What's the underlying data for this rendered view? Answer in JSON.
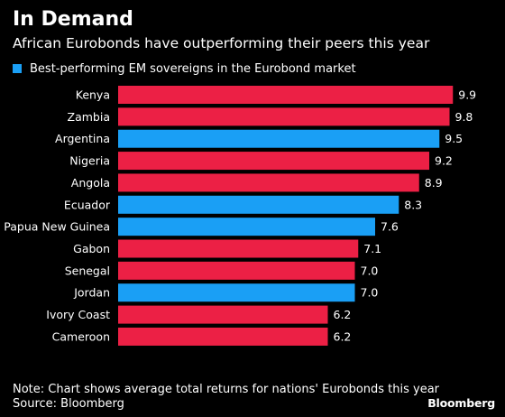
{
  "header": {
    "title": "In Demand",
    "subtitle": "African Eurobonds have outperforming their peers this year"
  },
  "legend": {
    "label": "Best-performing EM sovereigns in the Eurobond market",
    "color": "#1a9ff5"
  },
  "colors": {
    "african": "#ec2045",
    "other": "#1a9ff5",
    "background": "#000000",
    "text": "#ffffff"
  },
  "chart_data": {
    "type": "bar",
    "orientation": "horizontal",
    "categories": [
      "Kenya",
      "Zambia",
      "Argentina",
      "Nigeria",
      "Angola",
      "Ecuador",
      "Papua New Guinea",
      "Gabon",
      "Senegal",
      "Jordan",
      "Ivory Coast",
      "Cameroon"
    ],
    "values": [
      9.9,
      9.8,
      9.5,
      9.2,
      8.9,
      8.3,
      7.6,
      7.1,
      7.0,
      7.0,
      6.2,
      6.2
    ],
    "value_labels": [
      "9.9",
      "9.8",
      "9.5",
      "9.2",
      "8.9",
      "8.3",
      "7.6",
      "7.1",
      "7.0",
      "7.0",
      "6.2",
      "6.2"
    ],
    "bar_colors": [
      "#ec2045",
      "#ec2045",
      "#1a9ff5",
      "#ec2045",
      "#ec2045",
      "#1a9ff5",
      "#1a9ff5",
      "#ec2045",
      "#ec2045",
      "#1a9ff5",
      "#ec2045",
      "#ec2045"
    ],
    "xlim": [
      0,
      10
    ],
    "grid": false,
    "legend_position": "top-left"
  },
  "footer": {
    "note": "Note: Chart shows average total returns for nations' Eurobonds this year",
    "source": "Source: Bloomberg",
    "brand": "Bloomberg"
  }
}
